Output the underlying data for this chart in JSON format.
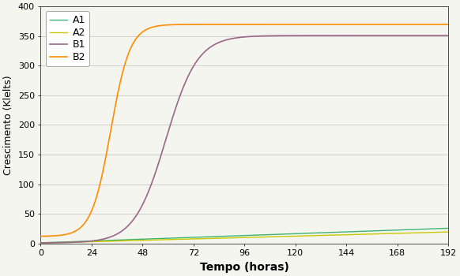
{
  "title": "",
  "xlabel": "Tempo (horas)",
  "ylabel": "Crescimento (Klelts)",
  "xlim": [
    0,
    192
  ],
  "ylim": [
    0,
    400
  ],
  "xticks": [
    0,
    24,
    48,
    72,
    96,
    120,
    144,
    168,
    192
  ],
  "yticks": [
    0,
    50,
    100,
    150,
    200,
    250,
    300,
    350,
    400
  ],
  "background_color": "#f5f5f0",
  "grid_color": "#c8c8c8",
  "series": {
    "A1": {
      "color": "#3cb371",
      "slope": 0.128,
      "intercept": 1.0
    },
    "A2": {
      "color": "#c8c800",
      "slope": 0.098,
      "intercept": 0.5
    },
    "B1": {
      "color": "#996688",
      "L": 350,
      "k": 0.135,
      "x0": 59,
      "y0": 1.0
    },
    "B2": {
      "color": "#ff8c00",
      "L": 358,
      "k": 0.22,
      "x0": 33,
      "y0": 12.0
    }
  },
  "legend_order": [
    "A1",
    "A2",
    "B1",
    "B2"
  ],
  "legend_loc": "upper left",
  "legend_fontsize": 9,
  "axis_label_fontsize": 9,
  "tick_fontsize": 8,
  "xlabel_fontsize": 10,
  "xlabel_fontweight": "bold",
  "linewidth_AB": 1.2,
  "linewidth_slim": 1.0
}
